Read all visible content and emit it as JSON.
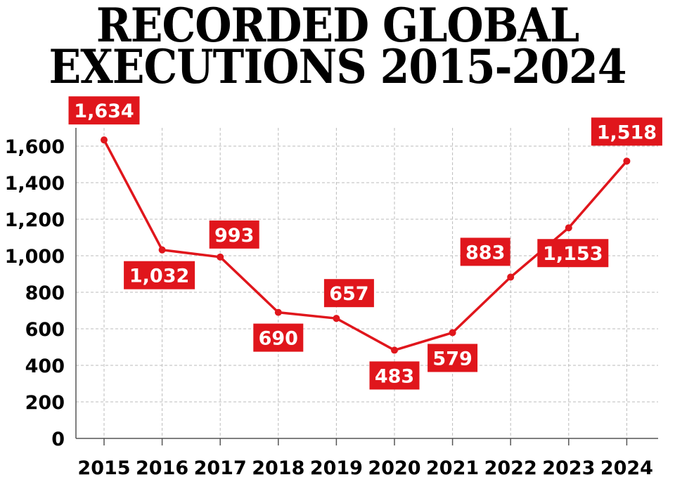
{
  "header": {
    "title_line1": "RECORDED GLOBAL",
    "title_line2": "EXECUTIONS 2015-2024"
  },
  "colors": {
    "line": "#e0161c",
    "label_bg": "#e0161c",
    "grid": "#bbbbbb",
    "axis": "#555555"
  },
  "chart_data": {
    "type": "line",
    "title": "RECORDED GLOBAL EXECUTIONS 2015-2024",
    "categories": [
      "2015",
      "2016",
      "2017",
      "2018",
      "2019",
      "2020",
      "2021",
      "2022",
      "2023",
      "2024"
    ],
    "values": [
      1634,
      1032,
      993,
      690,
      657,
      483,
      579,
      883,
      1153,
      1518
    ],
    "value_labels": [
      "1,634",
      "1,032",
      "993",
      "690",
      "657",
      "483",
      "579",
      "883",
      "1,153",
      "1,518"
    ],
    "label_positions": [
      "above",
      "below",
      "above",
      "below",
      "above",
      "below",
      "below",
      "above",
      "below",
      "above"
    ],
    "yticks": [
      0,
      200,
      400,
      600,
      800,
      1000,
      1200,
      1400,
      1600
    ],
    "ytick_labels": [
      "0",
      "200",
      "400",
      "600",
      "800",
      "1,000",
      "1,200",
      "1,400",
      "1,600"
    ],
    "ylim": [
      0,
      1700
    ],
    "xlabel": "",
    "ylabel": "",
    "grid": true,
    "legend": "none"
  }
}
